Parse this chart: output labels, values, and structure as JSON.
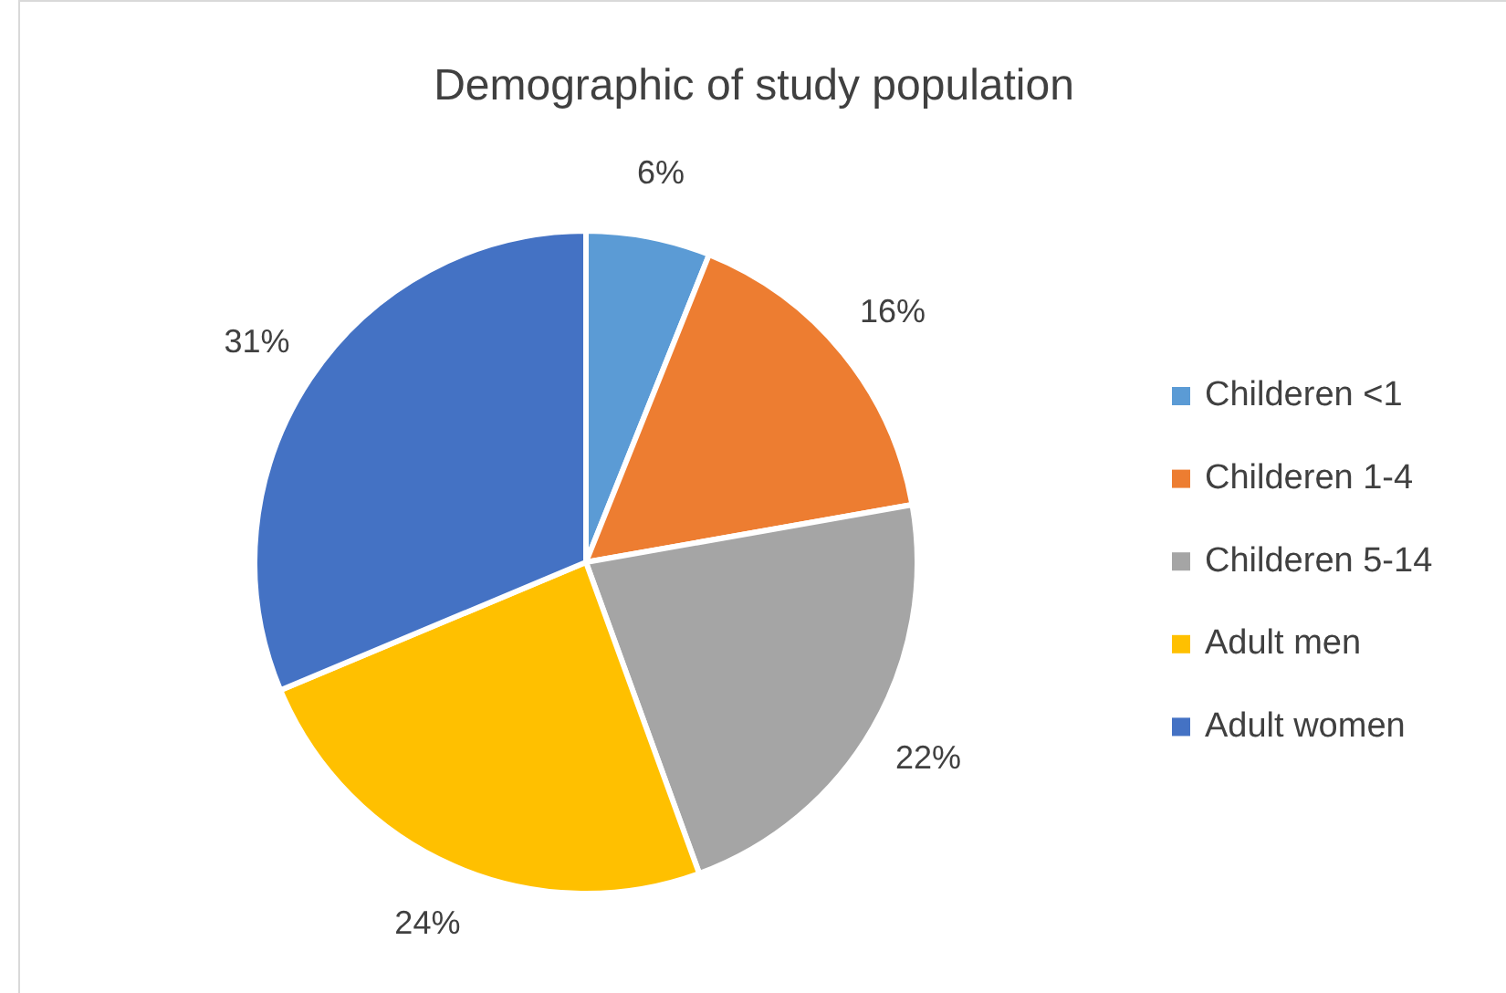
{
  "chart_data": {
    "type": "pie",
    "title": "Demographic of study population",
    "categories": [
      "Childeren <1",
      "Childeren 1-4",
      "Childeren 5-14",
      "Adult men",
      "Adult women"
    ],
    "values": [
      6,
      16,
      22,
      24,
      31
    ],
    "colors": [
      "#5b9bd5",
      "#ed7d31",
      "#a5a5a5",
      "#ffc000",
      "#4472c4"
    ],
    "value_labels": [
      "6%",
      "16%",
      "22%",
      "24%",
      "31%"
    ],
    "legend": "right"
  }
}
